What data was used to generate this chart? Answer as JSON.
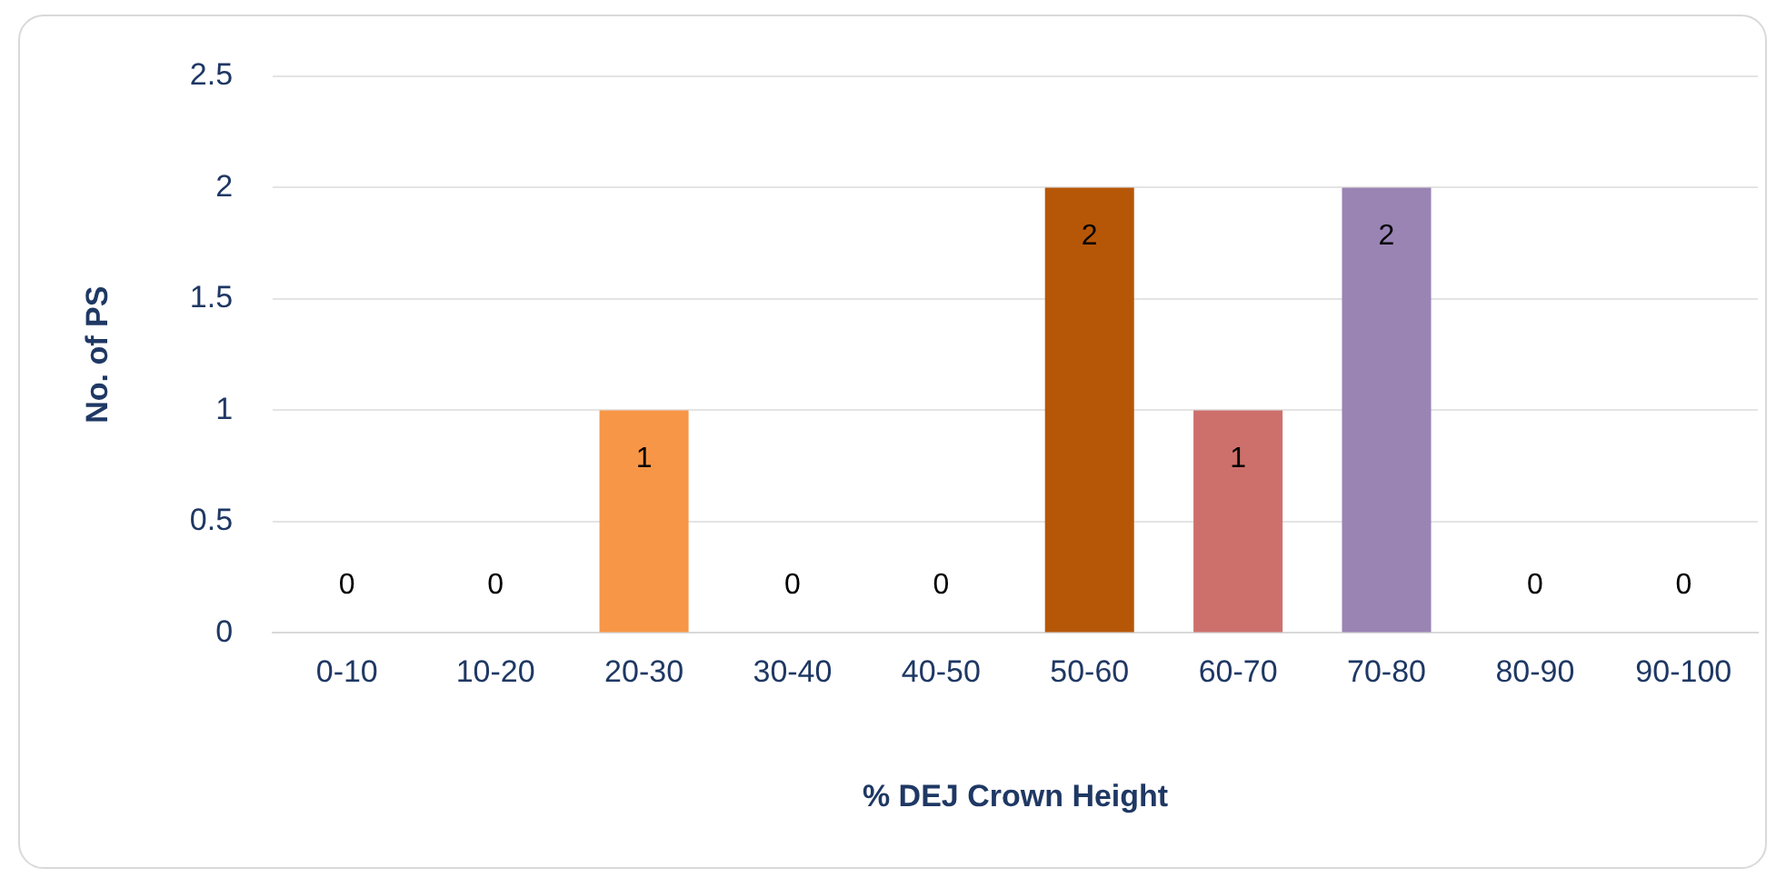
{
  "chart_data": {
    "type": "bar",
    "xlabel": "% DEJ Crown Height",
    "ylabel": "No. of PS",
    "categories": [
      "0-10",
      "10-20",
      "20-30",
      "30-40",
      "40-50",
      "50-60",
      "60-70",
      "70-80",
      "80-90",
      "90-100"
    ],
    "values": [
      0,
      0,
      1,
      0,
      0,
      2,
      1,
      2,
      0,
      0
    ],
    "colors": [
      null,
      null,
      "#f79646",
      null,
      null,
      "#b65708",
      "#cd706c",
      "#9a84b4",
      null,
      null
    ],
    "ylim": [
      0,
      2.5
    ],
    "yticks": [
      0,
      0.5,
      1,
      1.5,
      2,
      2.5
    ],
    "grid": "y",
    "legend": false,
    "data_labels": true
  }
}
